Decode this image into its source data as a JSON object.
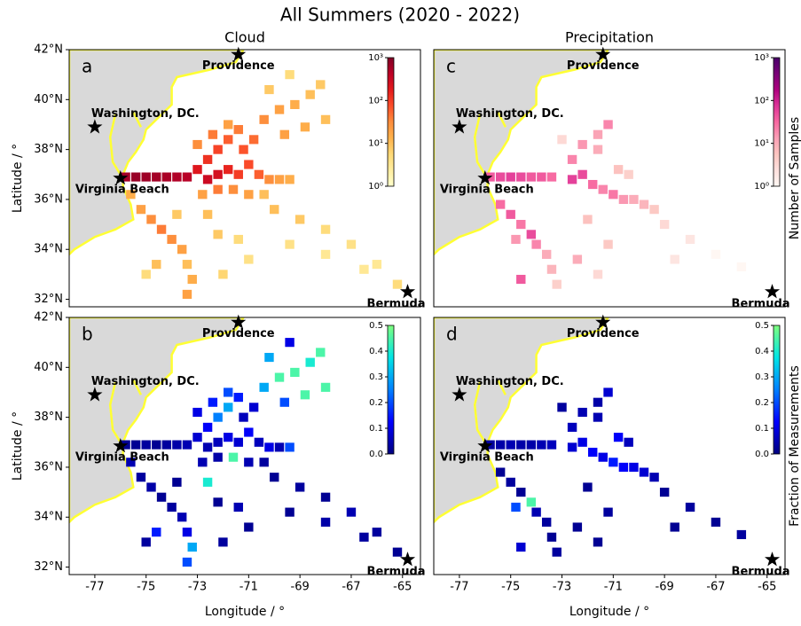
{
  "title": "All Summers (2020 - 2022)",
  "cities": [
    {
      "name": "Providence",
      "lon": -71.4,
      "lat": 41.8
    },
    {
      "name": "Washington, DC.",
      "lon": -77.0,
      "lat": 38.9
    },
    {
      "name": "Virginia Beach",
      "lon": -76.0,
      "lat": 36.85
    },
    {
      "name": "Bermuda",
      "lon": -64.8,
      "lat": 32.3
    }
  ],
  "chart_data": [
    {
      "type": "heatmap",
      "label": "a",
      "title": "Cloud",
      "ylabel": "Latitude / °",
      "xlim": [
        -78,
        -64.3
      ],
      "ylim": [
        31.7,
        42
      ],
      "yticks": [
        {
          "value": 32,
          "label": "32°N"
        },
        {
          "value": 34,
          "label": "34°N"
        },
        {
          "value": 36,
          "label": "36°N"
        },
        {
          "value": 38,
          "label": "38°N"
        },
        {
          "value": 40,
          "label": "40°N"
        },
        {
          "value": 42,
          "label": "42°N"
        }
      ],
      "colorbar": {
        "scale": "log",
        "lim": [
          1,
          1000
        ],
        "colors": [
          "#ffffcc",
          "#ffeda0",
          "#fed976",
          "#feb24c",
          "#fd8d3c",
          "#fc4e2a",
          "#e31a1c",
          "#bd0026",
          "#800026"
        ],
        "ticks": [
          {
            "value": 1,
            "label": "10⁰"
          },
          {
            "value": 10,
            "label": "10¹"
          },
          {
            "value": 100,
            "label": "10²"
          },
          {
            "value": 1000,
            "label": "10³"
          }
        ]
      },
      "cells": {
        "lon": [
          -75.8,
          -75.4,
          -75,
          -74.6,
          -74.2,
          -73.8,
          -73.4,
          -73,
          -72.6,
          -72.2,
          -71.8,
          -71.4,
          -72.6,
          -72.2,
          -71.8,
          -71.4,
          -71,
          -70.6,
          -70.2,
          -69.8,
          -69.4,
          -73,
          -72.4,
          -71.8,
          -71.2,
          -70.8,
          -72.8,
          -72.2,
          -71.6,
          -71,
          -70.4,
          -70.4,
          -69.8,
          -69.2,
          -68.6,
          -68.2,
          -69.6,
          -68.8,
          -68,
          -70.2,
          -69.4,
          -70,
          -69,
          -68,
          -67,
          -66,
          -65.2,
          -69.4,
          -68,
          -66.5,
          -75.6,
          -75.2,
          -74.8,
          -74.4,
          -74,
          -73.6,
          -73.4,
          -73.2,
          -73.4,
          -74.6,
          -75,
          -72.2,
          -71.4,
          -71,
          -72,
          -73.8,
          -72.6
        ],
        "lat": [
          36.9,
          36.9,
          36.9,
          36.9,
          36.9,
          36.9,
          36.9,
          37.2,
          37.6,
          38,
          38.4,
          38.8,
          36.8,
          37,
          37.2,
          37,
          37.4,
          37,
          36.8,
          36.8,
          36.8,
          38.2,
          38.6,
          39,
          38,
          38.4,
          36.2,
          36.4,
          36.4,
          36.2,
          36.2,
          39.2,
          39.6,
          39.8,
          40.2,
          40.6,
          38.6,
          38.9,
          39.2,
          40.4,
          41,
          35.6,
          35.2,
          34.8,
          34.2,
          33.4,
          32.6,
          34.2,
          33.8,
          33.2,
          36.2,
          35.6,
          35.2,
          34.8,
          34.4,
          34,
          33.4,
          32.8,
          32.2,
          33.4,
          33,
          34.6,
          34.4,
          33.6,
          33,
          35.4,
          35.4
        ],
        "values": [
          600,
          700,
          650,
          600,
          550,
          500,
          450,
          200,
          120,
          90,
          60,
          40,
          300,
          250,
          150,
          100,
          80,
          60,
          30,
          20,
          15,
          30,
          40,
          20,
          70,
          50,
          20,
          40,
          30,
          20,
          10,
          30,
          20,
          15,
          10,
          8,
          20,
          15,
          10,
          8,
          5,
          10,
          8,
          5,
          4,
          3,
          5,
          4,
          3,
          3,
          15,
          20,
          30,
          40,
          30,
          20,
          10,
          15,
          20,
          10,
          5,
          8,
          5,
          4,
          6,
          8,
          10
        ]
      }
    },
    {
      "type": "heatmap",
      "label": "b",
      "ylabel": "Latitude / °",
      "xlabel": "Longitude / °",
      "xlim": [
        -78,
        -64.3
      ],
      "ylim": [
        31.7,
        42
      ],
      "xticks": [
        -77,
        -75,
        -73,
        -71,
        -69,
        -67,
        -65
      ],
      "yticks": [
        {
          "value": 32,
          "label": "32°N"
        },
        {
          "value": 34,
          "label": "34°N"
        },
        {
          "value": 36,
          "label": "36°N"
        },
        {
          "value": 38,
          "label": "38°N"
        },
        {
          "value": 40,
          "label": "40°N"
        },
        {
          "value": 42,
          "label": "42°N"
        }
      ],
      "colorbar": {
        "scale": "linear",
        "lim": [
          0,
          0.5
        ],
        "colors": [
          "#00007f",
          "#0000ff",
          "#0080ff",
          "#00e5e5",
          "#7fff7f"
        ],
        "ticks": [
          {
            "value": 0,
            "label": "0.0"
          },
          0.1,
          0.2,
          0.3,
          0.4,
          0.5
        ]
      },
      "cells": {
        "lon": [
          -75.8,
          -75.4,
          -75,
          -74.6,
          -74.2,
          -73.8,
          -73.4,
          -73,
          -72.6,
          -72.2,
          -71.8,
          -71.4,
          -72.6,
          -72.2,
          -71.8,
          -71.4,
          -71,
          -70.6,
          -70.2,
          -69.8,
          -69.4,
          -73,
          -72.4,
          -71.8,
          -71.2,
          -70.8,
          -72.8,
          -72.2,
          -71.6,
          -71,
          -70.4,
          -70.4,
          -69.8,
          -69.2,
          -68.6,
          -68.2,
          -69.6,
          -68.8,
          -68,
          -70.2,
          -69.4,
          -70,
          -69,
          -68,
          -67,
          -66,
          -65.2,
          -69.4,
          -68,
          -66.5,
          -75.6,
          -75.2,
          -74.8,
          -74.4,
          -74,
          -73.6,
          -73.4,
          -73.2,
          -73.4,
          -74.6,
          -75,
          -72.2,
          -71.4,
          -71,
          -72,
          -73.8,
          -72.6
        ],
        "lat": [
          36.9,
          36.9,
          36.9,
          36.9,
          36.9,
          36.9,
          36.9,
          37.2,
          37.6,
          38,
          38.4,
          38.8,
          36.8,
          37,
          37.2,
          37,
          37.4,
          37,
          36.8,
          36.8,
          36.8,
          38.2,
          38.6,
          39,
          38,
          38.4,
          36.2,
          36.4,
          36.4,
          36.2,
          36.2,
          39.2,
          39.6,
          39.8,
          40.2,
          40.6,
          38.6,
          38.9,
          39.2,
          40.4,
          41,
          35.6,
          35.2,
          34.8,
          34.2,
          33.4,
          32.6,
          34.2,
          33.8,
          33.2,
          36.2,
          35.6,
          35.2,
          34.8,
          34.4,
          34,
          33.4,
          32.8,
          32.2,
          33.4,
          33,
          34.6,
          34.4,
          33.6,
          33,
          35.4,
          35.4
        ],
        "values": [
          0.02,
          0.02,
          0.03,
          0.02,
          0.03,
          0.04,
          0.05,
          0.08,
          0.12,
          0.25,
          0.3,
          0.15,
          0.05,
          0.06,
          0.1,
          0.08,
          0.12,
          0.06,
          0.1,
          0.05,
          0.2,
          0.1,
          0.15,
          0.2,
          0.06,
          0.08,
          0.05,
          0.04,
          0.45,
          0.05,
          0.03,
          0.3,
          0.45,
          0.45,
          0.4,
          0.45,
          0.2,
          0.45,
          0.45,
          0.3,
          0.1,
          0.02,
          0.03,
          0.02,
          0.05,
          0.03,
          0.02,
          0.02,
          0.04,
          0.03,
          0.05,
          0.03,
          0.04,
          0.02,
          0.03,
          0.05,
          0.1,
          0.3,
          0.2,
          0.15,
          0.03,
          0.02,
          0.05,
          0.02,
          0.03,
          0.02,
          0.4
        ]
      }
    },
    {
      "type": "heatmap",
      "label": "c",
      "title": "Precipitation",
      "xlim": [
        -78,
        -64.3
      ],
      "ylim": [
        31.7,
        42
      ],
      "colorbar": {
        "scale": "log",
        "lim": [
          1,
          1000
        ],
        "label": "Number of Samples",
        "colors": [
          "#fff7f3",
          "#fde0dd",
          "#fcc5c0",
          "#fa9fb5",
          "#f768a1",
          "#dd3497",
          "#ae017e",
          "#7a0177",
          "#49006a"
        ],
        "ticks": [
          {
            "value": 1,
            "label": "10⁰"
          },
          {
            "value": 10,
            "label": "10¹"
          },
          {
            "value": 100,
            "label": "10²"
          },
          {
            "value": 1000,
            "label": "10³"
          }
        ]
      },
      "cells": {
        "lon": [
          -75.8,
          -75.4,
          -75,
          -74.6,
          -74.2,
          -73.8,
          -73.4,
          -72.6,
          -72.2,
          -71.8,
          -71.4,
          -71,
          -70.6,
          -70.2,
          -69.8,
          -69.4,
          -72.6,
          -72.2,
          -71.6,
          -71.2,
          -71.6,
          -73,
          -70.8,
          -70.4,
          -75.4,
          -75,
          -74.6,
          -74.2,
          -74,
          -74.8,
          -73.6,
          -73.4,
          -73.2,
          -74.6,
          -72,
          -71.2,
          -72.4,
          -71.6,
          -69,
          -68,
          -67,
          -66,
          -68.6
        ],
        "lat": [
          36.9,
          36.9,
          36.9,
          36.9,
          36.9,
          36.9,
          36.9,
          36.8,
          37,
          36.6,
          36.4,
          36.2,
          36,
          36,
          35.8,
          35.6,
          37.6,
          38.2,
          38.6,
          39,
          38,
          38.4,
          37.2,
          37,
          35.8,
          35.4,
          35,
          34.6,
          34.2,
          34.4,
          33.8,
          33.2,
          32.6,
          32.8,
          35.2,
          34.2,
          33.6,
          33,
          35,
          34.4,
          33.8,
          33.3,
          33.6
        ],
        "values": [
          40,
          50,
          60,
          50,
          40,
          40,
          30,
          60,
          50,
          30,
          20,
          25,
          15,
          10,
          8,
          5,
          20,
          15,
          12,
          20,
          10,
          3,
          6,
          4,
          30,
          40,
          25,
          50,
          20,
          15,
          10,
          8,
          4,
          40,
          6,
          5,
          10,
          3,
          3,
          2,
          1,
          1,
          2
        ]
      }
    },
    {
      "type": "heatmap",
      "label": "d",
      "xlabel": "Longitude / °",
      "xlim": [
        -78,
        -64.3
      ],
      "ylim": [
        31.7,
        42
      ],
      "xticks": [
        -77,
        -75,
        -73,
        -71,
        -69,
        -67,
        -65
      ],
      "colorbar": {
        "scale": "linear",
        "lim": [
          0,
          0.5
        ],
        "label": "Fraction of Measurements",
        "colors": [
          "#00007f",
          "#0000ff",
          "#0080ff",
          "#00e5e5",
          "#7fff7f"
        ],
        "ticks": [
          {
            "value": 0,
            "label": "0.0"
          },
          0.1,
          0.2,
          0.3,
          0.4,
          0.5
        ]
      },
      "cells": {
        "lon": [
          -75.8,
          -75.4,
          -75,
          -74.6,
          -74.2,
          -73.8,
          -73.4,
          -72.6,
          -72.2,
          -71.8,
          -71.4,
          -71,
          -70.6,
          -70.2,
          -69.8,
          -69.4,
          -72.6,
          -72.2,
          -71.6,
          -71.2,
          -71.6,
          -73,
          -70.8,
          -70.4,
          -75.4,
          -75,
          -74.6,
          -74.2,
          -74,
          -74.8,
          -73.6,
          -73.4,
          -73.2,
          -74.6,
          -72,
          -71.2,
          -72.4,
          -71.6,
          -69,
          -68,
          -67,
          -66,
          -68.6
        ],
        "lat": [
          36.9,
          36.9,
          36.9,
          36.9,
          36.9,
          36.9,
          36.9,
          36.8,
          37,
          36.6,
          36.4,
          36.2,
          36,
          36,
          35.8,
          35.6,
          37.6,
          38.2,
          38.6,
          39,
          38,
          38.4,
          37.2,
          37,
          35.8,
          35.4,
          35,
          34.6,
          34.2,
          34.4,
          33.8,
          33.2,
          32.6,
          32.8,
          35.2,
          34.2,
          33.6,
          33,
          35,
          34.4,
          33.8,
          33.3,
          33.6
        ],
        "values": [
          0.03,
          0.04,
          0.05,
          0.04,
          0.04,
          0.05,
          0.06,
          0.08,
          0.1,
          0.12,
          0.1,
          0.15,
          0.12,
          0.1,
          0.08,
          0.05,
          0.06,
          0.05,
          0.04,
          0.08,
          0.05,
          0.03,
          0.12,
          0.06,
          0.02,
          0.03,
          0.02,
          0.45,
          0.05,
          0.2,
          0.03,
          0.02,
          0.03,
          0.08,
          0.02,
          0.03,
          0.02,
          0.02,
          0.02,
          0.03,
          0.02,
          0.03,
          0.02
        ]
      }
    }
  ]
}
